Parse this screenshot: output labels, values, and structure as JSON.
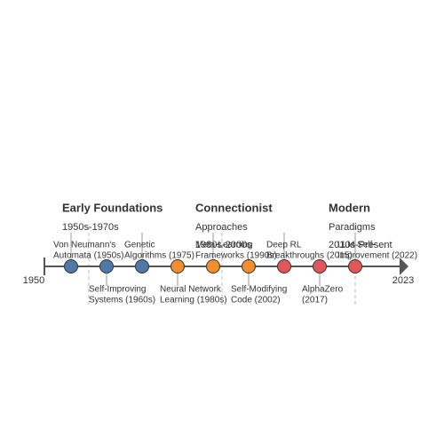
{
  "axis": {
    "start": "1950",
    "end": "2023"
  },
  "eras": [
    {
      "title": "Early Foundations",
      "lines": [
        "1950s-1970s"
      ],
      "color": "#4e79a7",
      "events": [
        {
          "lines": [
            "Von Neumann's",
            "Automata (1950s)"
          ]
        },
        {
          "lines": [
            "Self-Improving",
            "Systems (1960s)"
          ]
        },
        {
          "lines": [
            "Genetic",
            "Algorithms (1975)"
          ]
        }
      ]
    },
    {
      "title": "Connectionist",
      "lines": [
        "Approaches",
        "1980s-2000s"
      ],
      "color": "#f28e2b",
      "events": [
        {
          "lines": [
            "Neural Network",
            "Learning (1980s)"
          ]
        },
        {
          "lines": [
            "Meta-Learning",
            "Frameworks (1990s)"
          ]
        },
        {
          "lines": [
            "Self-Modifying",
            "Code (2002)"
          ]
        }
      ]
    },
    {
      "title": "Modern",
      "lines": [
        "Paradigms",
        "2010s-Present"
      ],
      "color": "#e15759",
      "events": [
        {
          "lines": [
            "Deep RL",
            "Breakthroughs (2015)"
          ]
        },
        {
          "lines": [
            "AlphaZero",
            "(2017)"
          ]
        },
        {
          "lines": [
            "LLM Self-",
            "Improvement (2022)"
          ]
        }
      ]
    }
  ]
}
